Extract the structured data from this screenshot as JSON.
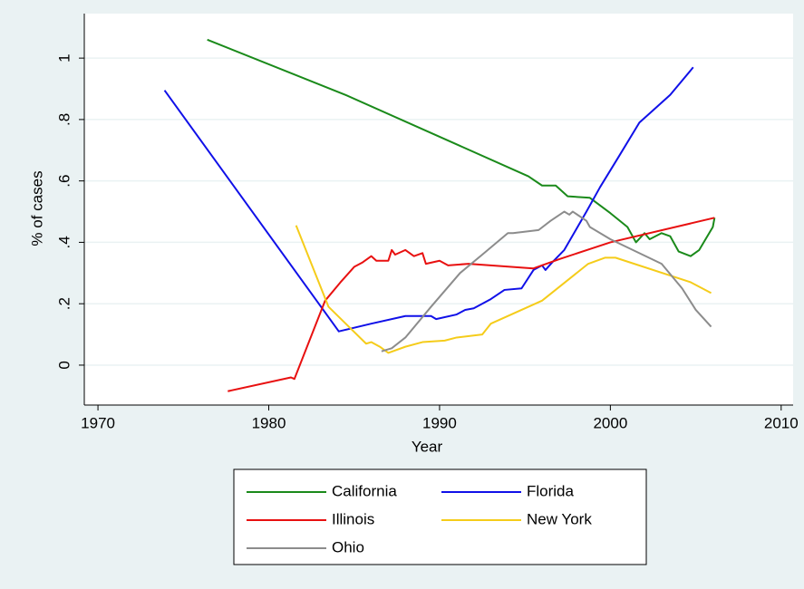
{
  "chart_data": {
    "type": "line",
    "x_label": "Year",
    "y_label": "% of cases",
    "xlim": [
      1969.2,
      2010.7
    ],
    "ylim": [
      -0.13,
      1.145
    ],
    "xticks": [
      1970,
      1980,
      1990,
      2000,
      2010
    ],
    "yticks": [
      {
        "value": 0,
        "label": "0"
      },
      {
        "value": 0.2,
        "label": ".2"
      },
      {
        "value": 0.4,
        "label": ".4"
      },
      {
        "value": 0.6,
        "label": ".6"
      },
      {
        "value": 0.8,
        "label": ".8"
      },
      {
        "value": 1,
        "label": "1"
      }
    ],
    "grid": true,
    "series": [
      {
        "name": "California",
        "color": "#1a8a1a",
        "x": [
          1976.4,
          1984.5,
          1995.2,
          1996,
          1996.8,
          1997.5,
          1998.8,
          2000,
          2001,
          2001.5,
          2002,
          2002.3,
          2003,
          2003.5,
          2004,
          2004.7,
          2005.2,
          2006,
          2006.1
        ],
        "values": [
          1.06,
          0.88,
          0.615,
          0.585,
          0.585,
          0.55,
          0.545,
          0.495,
          0.45,
          0.4,
          0.43,
          0.41,
          0.43,
          0.42,
          0.37,
          0.355,
          0.375,
          0.45,
          0.48
        ]
      },
      {
        "name": "Florida",
        "color": "#1010e8",
        "x": [
          1973.9,
          1984.1,
          1986,
          1988,
          1989.5,
          1989.8,
          1991,
          1991.5,
          1992,
          1993,
          1993.8,
          1994.8,
          1995.5,
          1996,
          1996.2,
          1996.6,
          1997.3,
          1998.6,
          1999.4,
          2000.5,
          2001.7,
          2002.3,
          2003.5,
          2004.85
        ],
        "values": [
          0.895,
          0.11,
          0.135,
          0.16,
          0.16,
          0.15,
          0.165,
          0.18,
          0.185,
          0.215,
          0.245,
          0.25,
          0.31,
          0.325,
          0.31,
          0.335,
          0.375,
          0.5,
          0.58,
          0.68,
          0.79,
          0.82,
          0.88,
          0.97
        ]
      },
      {
        "name": "Illinois",
        "color": "#e81010",
        "x": [
          1977.6,
          1981.3,
          1981.5,
          1983.3,
          1984.2,
          1985,
          1985.5,
          1986,
          1986.3,
          1987,
          1987.2,
          1987.4,
          1988,
          1988.5,
          1989,
          1989.2,
          1990,
          1990.5,
          1991.7,
          1993,
          1995.5,
          1997,
          2000,
          2006.1
        ],
        "values": [
          -0.085,
          -0.04,
          -0.045,
          0.21,
          0.27,
          0.32,
          0.335,
          0.355,
          0.34,
          0.34,
          0.375,
          0.36,
          0.375,
          0.355,
          0.365,
          0.33,
          0.34,
          0.325,
          0.33,
          0.325,
          0.315,
          0.345,
          0.4,
          0.48
        ]
      },
      {
        "name": "New York",
        "color": "#f5cc1a",
        "x": [
          1981.6,
          1983.5,
          1985.7,
          1986,
          1986.5,
          1987,
          1988,
          1989,
          1990.3,
          1991,
          1992.5,
          1993,
          1996,
          1998.7,
          1999.7,
          2000.3,
          2004.7,
          2005.9
        ],
        "values": [
          0.455,
          0.19,
          0.07,
          0.075,
          0.06,
          0.04,
          0.06,
          0.075,
          0.08,
          0.09,
          0.1,
          0.135,
          0.21,
          0.33,
          0.35,
          0.35,
          0.27,
          0.235
        ]
      },
      {
        "name": "Ohio",
        "color": "#8c8c8c",
        "x": [
          1986.6,
          1987.2,
          1988,
          1989.5,
          1991.2,
          1992.5,
          1994,
          1994.3,
          1995.8,
          1996.5,
          1997.3,
          1997.6,
          1997.8,
          1998.6,
          1998.8,
          2000,
          2003,
          2004.2,
          2005,
          2005.9
        ],
        "values": [
          0.045,
          0.055,
          0.09,
          0.19,
          0.3,
          0.36,
          0.43,
          0.43,
          0.44,
          0.47,
          0.5,
          0.49,
          0.5,
          0.47,
          0.45,
          0.41,
          0.33,
          0.25,
          0.18,
          0.125
        ]
      }
    ]
  }
}
